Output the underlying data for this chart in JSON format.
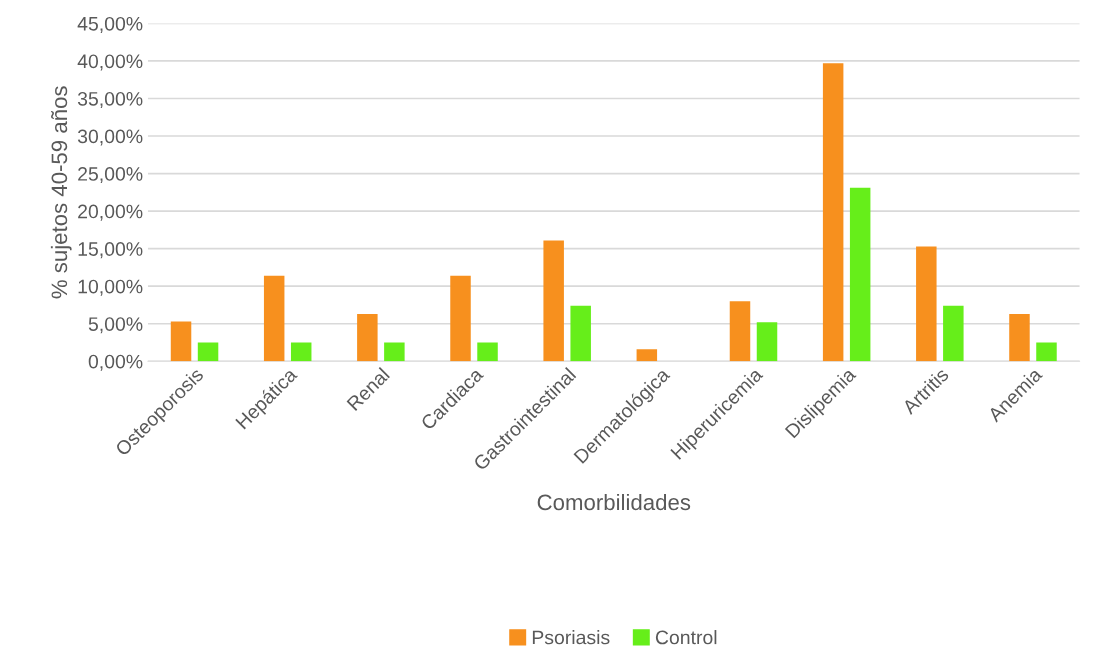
{
  "chart_data": {
    "type": "bar",
    "xlabel": "Comorbilidades",
    "ylabel": "% sujetos 40-59 años",
    "categories": [
      "Osteoporosis",
      "Hepática",
      "Renal",
      "Cardiaca",
      "Gastrointestinal",
      "Dermatológica",
      "Hiperuricemia",
      "Dislipemia",
      "Artritis",
      "Anemia"
    ],
    "series": [
      {
        "name": "Psoriasis",
        "color": "#f7901e",
        "values": [
          5.3,
          11.4,
          6.3,
          11.4,
          16.1,
          1.6,
          8.0,
          39.7,
          15.3,
          6.3
        ]
      },
      {
        "name": "Control",
        "color": "#66ee1a",
        "values": [
          2.5,
          2.5,
          2.5,
          2.5,
          7.4,
          0,
          5.2,
          23.1,
          7.4,
          2.5
        ]
      }
    ],
    "ylim": [
      0,
      45
    ],
    "yticks": [
      {
        "value": 0,
        "label": "0,00%"
      },
      {
        "value": 5,
        "label": "5,00%"
      },
      {
        "value": 10,
        "label": "10,00%"
      },
      {
        "value": 15,
        "label": "15,00%"
      },
      {
        "value": 20,
        "label": "20,00%"
      },
      {
        "value": 25,
        "label": "25,00%"
      },
      {
        "value": 30,
        "label": "30,00%"
      },
      {
        "value": 35,
        "label": "35,00%"
      },
      {
        "value": 40,
        "label": "40,00%"
      },
      {
        "value": 45,
        "label": "45,00%"
      }
    ],
    "grid": "y",
    "legend": "bottom"
  }
}
